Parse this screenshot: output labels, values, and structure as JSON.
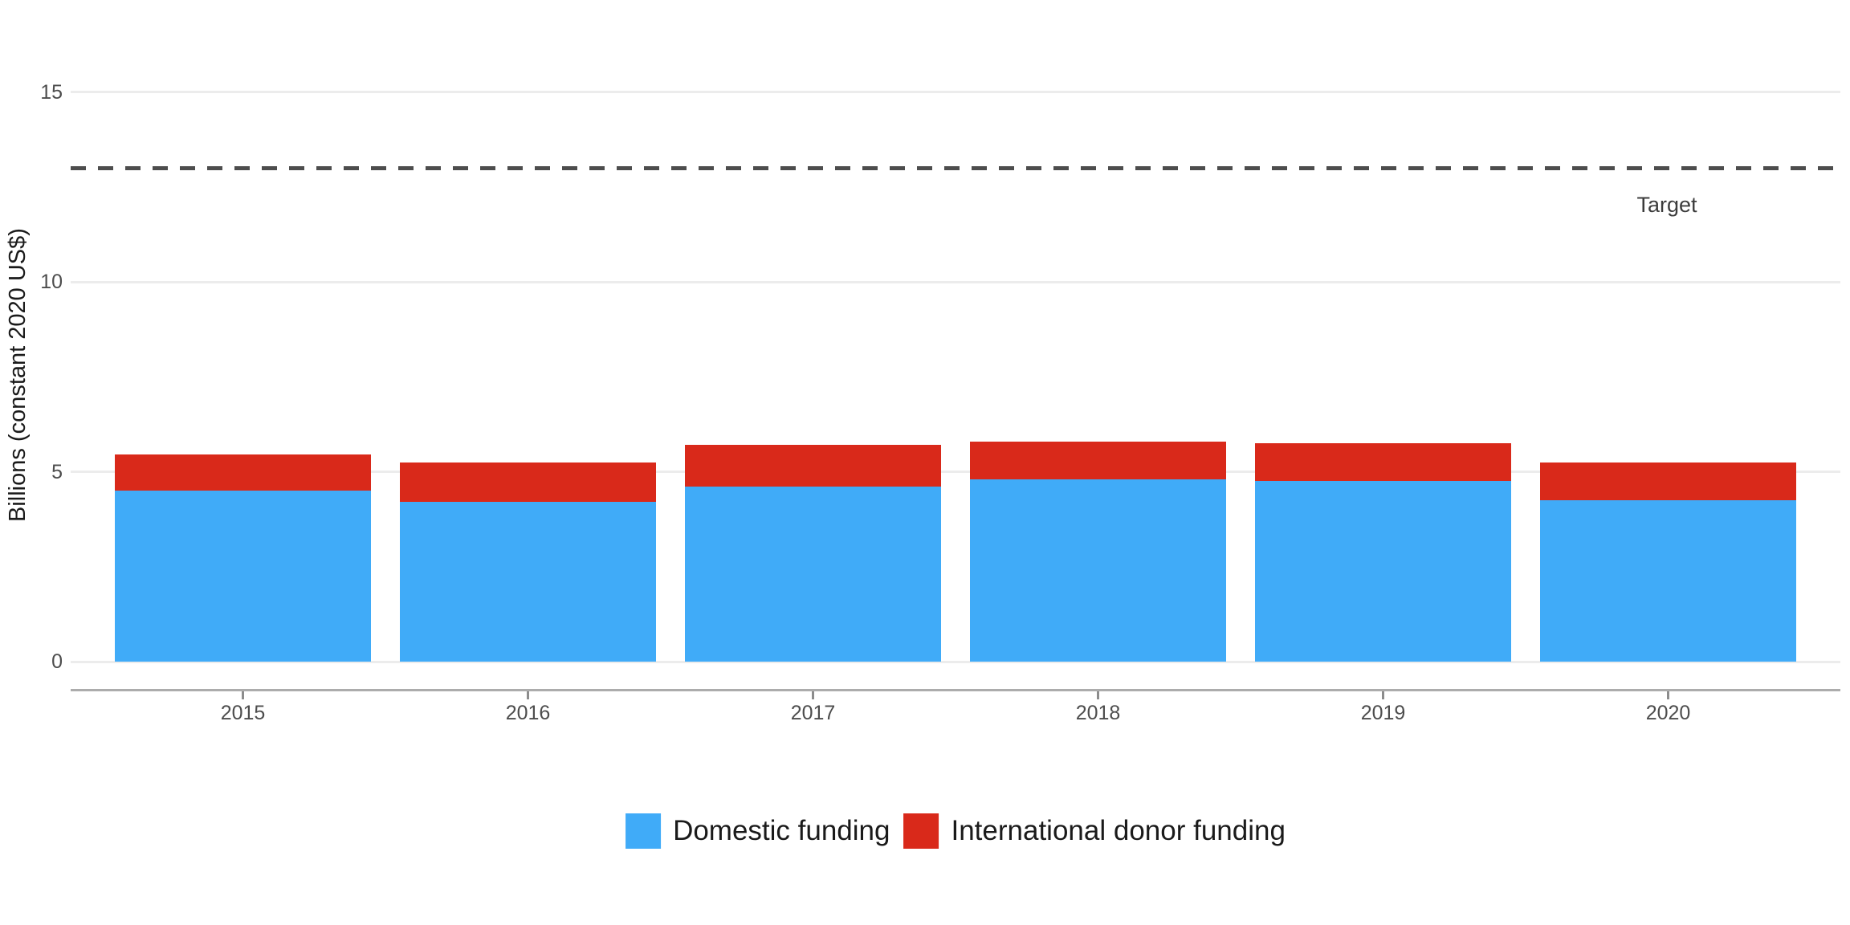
{
  "chart_data": {
    "type": "bar",
    "stacked": true,
    "title": "",
    "xlabel": "",
    "ylabel": "Billions (constant 2020 US$)",
    "categories": [
      "2015",
      "2016",
      "2017",
      "2018",
      "2019",
      "2020"
    ],
    "series": [
      {
        "name": "Domestic funding",
        "color": "#40ABF8",
        "values": [
          4.5,
          4.2,
          4.6,
          4.8,
          4.75,
          4.25
        ]
      },
      {
        "name": "International donor funding",
        "color": "#D9291A",
        "values": [
          0.95,
          1.05,
          1.1,
          1.0,
          1.0,
          1.0
        ]
      }
    ],
    "totals": [
      5.45,
      5.25,
      5.7,
      5.8,
      5.75,
      5.25
    ],
    "ylim": [
      0,
      15
    ],
    "yticks": [
      "0",
      "5",
      "10",
      "15"
    ],
    "grid": true,
    "legend_position": "bottom",
    "reference_line": {
      "label": "Target",
      "value": 13,
      "style": "dashed"
    }
  },
  "colors": {
    "background": "#FFFFFF",
    "domestic": "#40ABF8",
    "international": "#D9291A",
    "target_line": "#4D4D4D",
    "gridline": "#ECECEC",
    "axis_line": "#ACACAC",
    "tick_text": "#4D4D4D",
    "axis_title_text": "#1A1A1A"
  },
  "legend": {
    "items": [
      {
        "label": "Domestic funding",
        "color": "#40ABF8"
      },
      {
        "label": "International donor funding",
        "color": "#D9291A"
      }
    ]
  },
  "annotations": {
    "target_label": "Target"
  }
}
